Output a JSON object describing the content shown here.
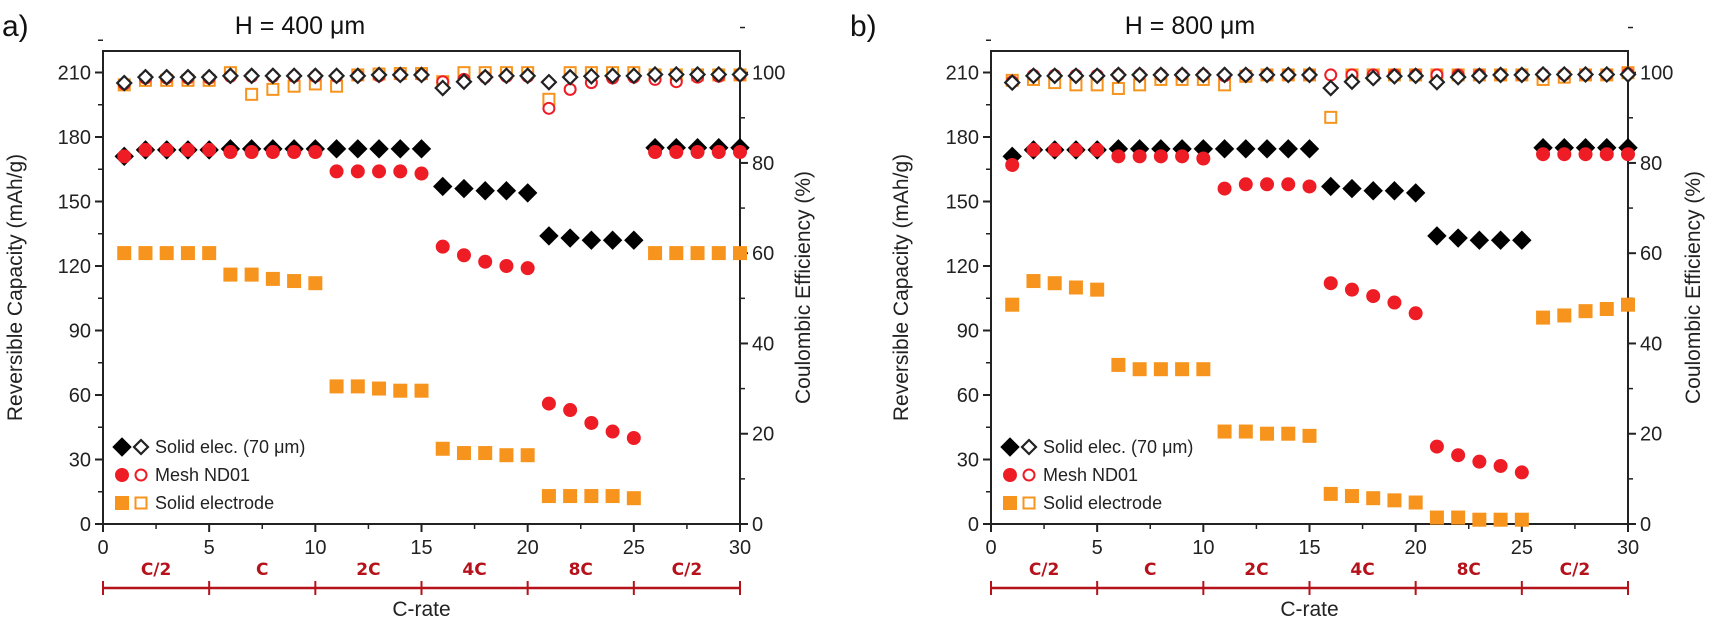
{
  "chart_data": [
    {
      "type": "scatter",
      "panel_label": "a)",
      "title": "H = 400 μm",
      "xlabel": "C-rate",
      "ylabel": "Reversible Capacity (mAh/g)",
      "y2label": "Coulombic Efficiency (%)",
      "xlim": [
        0,
        30
      ],
      "ylim": [
        0,
        220
      ],
      "y2lim": [
        0,
        104.8
      ],
      "xticks": [
        0,
        5,
        10,
        15,
        20,
        25,
        30
      ],
      "yticks": [
        0,
        30,
        60,
        90,
        120,
        150,
        180,
        210
      ],
      "y2ticks": [
        0,
        20,
        40,
        60,
        80,
        100
      ],
      "grid": false,
      "legend_placement": "bottom-left",
      "c_rate_segments": [
        {
          "label": "C/2",
          "from": 0,
          "to": 5
        },
        {
          "label": "C",
          "from": 5,
          "to": 10
        },
        {
          "label": "2C",
          "from": 10,
          "to": 15
        },
        {
          "label": "4C",
          "from": 15,
          "to": 20
        },
        {
          "label": "8C",
          "from": 20,
          "to": 25
        },
        {
          "label": "C/2",
          "from": 25,
          "to": 30
        }
      ],
      "x": [
        1,
        2,
        3,
        4,
        5,
        6,
        7,
        8,
        9,
        10,
        11,
        12,
        13,
        14,
        15,
        16,
        17,
        18,
        19,
        20,
        21,
        22,
        23,
        24,
        25,
        26,
        27,
        28,
        29,
        30
      ],
      "series": [
        {
          "name": "Solid elec. (70 μm)",
          "color": "#000000",
          "marker": "diamond",
          "capacity": [
            171,
            174,
            174,
            174,
            174,
            174.5,
            174.5,
            174.5,
            174.5,
            174.5,
            174.5,
            174.5,
            174.5,
            174.5,
            174.5,
            157,
            156,
            155,
            155,
            154,
            134,
            133,
            132,
            132,
            132,
            175,
            175,
            175,
            175,
            175
          ],
          "coulombic_efficiency": [
            97.7,
            99,
            99,
            99,
            99,
            99.3,
            99.3,
            99.3,
            99.3,
            99.3,
            99.3,
            99.3,
            99.5,
            99.5,
            99.5,
            96.6,
            98,
            99,
            99.3,
            99.3,
            97.9,
            99,
            99.2,
            99.3,
            99.3,
            99.6,
            99.6,
            99.6,
            99.6,
            99.6
          ]
        },
        {
          "name": "Mesh ND01",
          "color": "#ee1c25",
          "marker": "circle",
          "capacity": [
            171,
            174,
            174,
            174,
            174,
            173,
            173,
            173,
            173,
            173,
            164,
            164,
            164,
            164,
            163,
            129,
            125,
            122,
            120,
            119,
            56,
            53,
            47,
            43,
            40,
            173,
            173,
            173,
            173,
            173
          ],
          "coulombic_efficiency": [
            97.5,
            98.8,
            98.8,
            98.8,
            98.8,
            99.2,
            99.2,
            99.2,
            99.2,
            99.2,
            99.2,
            99.3,
            99.3,
            99.5,
            99.5,
            98,
            98.5,
            99,
            99.2,
            99.2,
            92.1,
            96.3,
            97.8,
            98.8,
            99,
            98.5,
            98,
            99,
            99.2,
            99.5
          ]
        },
        {
          "name": "Solid electrode",
          "color": "#f7941d",
          "marker": "square",
          "capacity": [
            126,
            126,
            126,
            126,
            126,
            116,
            116,
            114,
            113,
            112,
            64,
            64,
            63,
            62,
            62,
            35,
            33,
            33,
            32,
            32,
            13,
            13,
            13,
            13,
            12,
            126,
            126,
            126,
            126,
            126
          ],
          "coulombic_efficiency": [
            97.3,
            98.3,
            98.3,
            98.3,
            98.3,
            100,
            95.2,
            96.3,
            97,
            97.5,
            97,
            99.5,
            99.7,
            99.8,
            99.8,
            98,
            100,
            100,
            100,
            100,
            94.1,
            100,
            100,
            100,
            100,
            99.5,
            99.5,
            99.5,
            99.5,
            99.5
          ]
        }
      ]
    },
    {
      "type": "scatter",
      "panel_label": "b)",
      "title": "H = 800 μm",
      "xlabel": "C-rate",
      "ylabel": "Reversible Capacity (mAh/g)",
      "y2label": "Coulombic Efficiency (%)",
      "xlim": [
        0,
        30
      ],
      "ylim": [
        0,
        220
      ],
      "y2lim": [
        0,
        104.8
      ],
      "xticks": [
        0,
        5,
        10,
        15,
        20,
        25,
        30
      ],
      "yticks": [
        0,
        30,
        60,
        90,
        120,
        150,
        180,
        210
      ],
      "y2ticks": [
        0,
        20,
        40,
        60,
        80,
        100
      ],
      "grid": false,
      "legend_placement": "bottom-left",
      "c_rate_segments": [
        {
          "label": "C/2",
          "from": 0,
          "to": 5
        },
        {
          "label": "C",
          "from": 5,
          "to": 10
        },
        {
          "label": "2C",
          "from": 10,
          "to": 15
        },
        {
          "label": "4C",
          "from": 15,
          "to": 20
        },
        {
          "label": "8C",
          "from": 20,
          "to": 25
        },
        {
          "label": "C/2",
          "from": 25,
          "to": 30
        }
      ],
      "x": [
        1,
        2,
        3,
        4,
        5,
        6,
        7,
        8,
        9,
        10,
        11,
        12,
        13,
        14,
        15,
        16,
        17,
        18,
        19,
        20,
        21,
        22,
        23,
        24,
        25,
        26,
        27,
        28,
        29,
        30
      ],
      "series": [
        {
          "name": "Solid elec. (70 μm)",
          "color": "#000000",
          "marker": "diamond",
          "capacity": [
            171,
            174,
            174,
            174,
            174,
            174.5,
            174.5,
            174.5,
            174.5,
            174.5,
            174.5,
            174.5,
            174.5,
            174.5,
            174.5,
            157,
            156,
            155,
            155,
            154,
            134,
            133,
            132,
            132,
            132,
            175,
            175,
            175,
            175,
            175
          ],
          "coulombic_efficiency": [
            97.8,
            99.3,
            99.3,
            99.3,
            99.3,
            99.5,
            99.5,
            99.5,
            99.5,
            99.5,
            99.5,
            99.5,
            99.5,
            99.5,
            99.5,
            96.6,
            98,
            98.8,
            99.2,
            99.3,
            97.9,
            99,
            99.3,
            99.5,
            99.5,
            99.6,
            99.6,
            99.6,
            99.6,
            99.6
          ]
        },
        {
          "name": "Mesh ND01",
          "color": "#ee1c25",
          "marker": "circle",
          "capacity": [
            167,
            174,
            174,
            174,
            174,
            171,
            171,
            171,
            171,
            170,
            156,
            158,
            158,
            158,
            157,
            112,
            109,
            106,
            103,
            98,
            36,
            32,
            29,
            27,
            24,
            172,
            172,
            172,
            172,
            172
          ],
          "coulombic_efficiency": [
            98,
            99.4,
            99.4,
            99.4,
            99.4,
            99.5,
            99.5,
            99.5,
            99.5,
            99.5,
            99.3,
            99.5,
            99.5,
            99.5,
            99.5,
            99.5,
            99.5,
            99.5,
            99.5,
            99.5,
            99.5,
            99.5,
            99.5,
            99.5,
            99.5,
            99.6,
            99.6,
            99.6,
            99.6,
            99.8
          ]
        },
        {
          "name": "Solid electrode",
          "color": "#f7941d",
          "marker": "square",
          "capacity": [
            102,
            113,
            112,
            110,
            109,
            74,
            72,
            72,
            72,
            72,
            43,
            43,
            42,
            42,
            41,
            14,
            13,
            12,
            11,
            10,
            3,
            3,
            2,
            2,
            2,
            96,
            97,
            99,
            100,
            102
          ],
          "coulombic_efficiency": [
            98.3,
            98.5,
            97.8,
            97.3,
            97.3,
            96.5,
            97.3,
            98.5,
            98.5,
            98.5,
            97.3,
            99.2,
            99.5,
            99.5,
            99.5,
            90.1,
            99.5,
            99.5,
            99.5,
            99.5,
            99.5,
            99.5,
            99.5,
            99.5,
            99.5,
            98.5,
            99,
            99.5,
            99.5,
            100
          ]
        }
      ]
    }
  ]
}
